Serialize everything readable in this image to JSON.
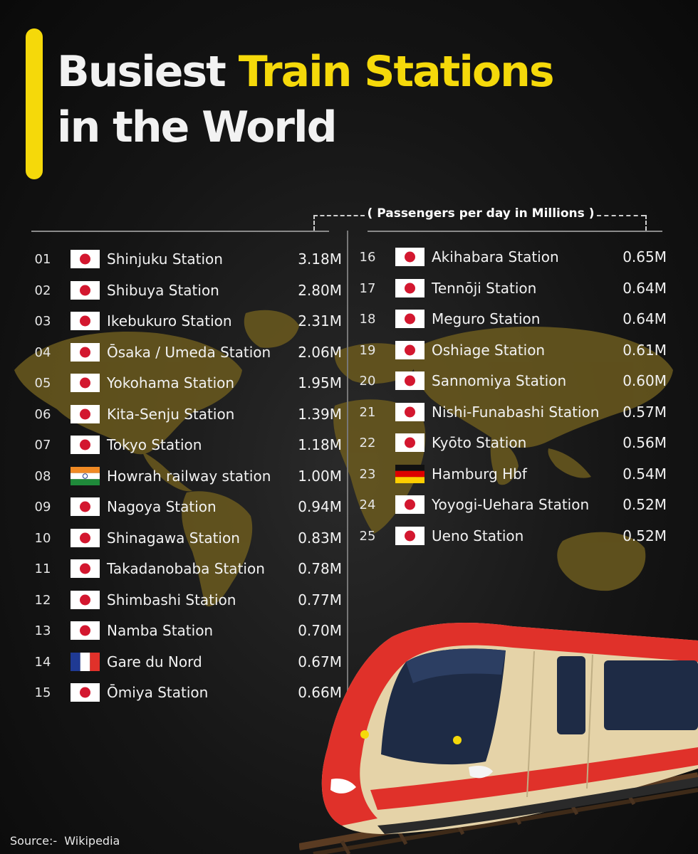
{
  "title": {
    "part1": "Busiest",
    "highlight": "Train Stations",
    "part2": "in the World"
  },
  "subtitle": "( Passengers per day in Millions )",
  "colors": {
    "accent": "#f5d90a",
    "map": "#6b5a1e",
    "train_red": "#e0312a",
    "train_body": "#e5d3a8"
  },
  "stations": [
    {
      "rank": "01",
      "flag": "japan-flag-icon",
      "name": "Shinjuku Station",
      "value": "3.18M"
    },
    {
      "rank": "02",
      "flag": "japan-flag-icon",
      "name": "Shibuya Station",
      "value": "2.80M"
    },
    {
      "rank": "03",
      "flag": "japan-flag-icon",
      "name": "Ikebukuro Station",
      "value": "2.31M"
    },
    {
      "rank": "04",
      "flag": "japan-flag-icon",
      "name": "Ōsaka / Umeda Station",
      "value": "2.06M"
    },
    {
      "rank": "05",
      "flag": "japan-flag-icon",
      "name": "Yokohama Station",
      "value": "1.95M"
    },
    {
      "rank": "06",
      "flag": "japan-flag-icon",
      "name": "Kita-Senju Station",
      "value": "1.39M"
    },
    {
      "rank": "07",
      "flag": "japan-flag-icon",
      "name": "Tokyo Station",
      "value": "1.18M"
    },
    {
      "rank": "08",
      "flag": "india-flag-icon",
      "name": "Howrah railway station",
      "value": "1.00M"
    },
    {
      "rank": "09",
      "flag": "japan-flag-icon",
      "name": "Nagoya Station",
      "value": "0.94M"
    },
    {
      "rank": "10",
      "flag": "japan-flag-icon",
      "name": "Shinagawa Station",
      "value": "0.83M"
    },
    {
      "rank": "11",
      "flag": "japan-flag-icon",
      "name": "Takadanobaba Station",
      "value": "0.78M"
    },
    {
      "rank": "12",
      "flag": "japan-flag-icon",
      "name": "Shimbashi Station",
      "value": "0.77M"
    },
    {
      "rank": "13",
      "flag": "japan-flag-icon",
      "name": "Namba Station",
      "value": "0.70M"
    },
    {
      "rank": "14",
      "flag": "france-flag-icon",
      "name": "Gare du Nord",
      "value": "0.67M"
    },
    {
      "rank": "15",
      "flag": "japan-flag-icon",
      "name": "Ōmiya Station",
      "value": "0.66M"
    },
    {
      "rank": "16",
      "flag": "japan-flag-icon",
      "name": "Akihabara Station",
      "value": "0.65M"
    },
    {
      "rank": "17",
      "flag": "japan-flag-icon",
      "name": "Tennōji Station",
      "value": "0.64M"
    },
    {
      "rank": "18",
      "flag": "japan-flag-icon",
      "name": "Meguro Station",
      "value": "0.64M"
    },
    {
      "rank": "19",
      "flag": "japan-flag-icon",
      "name": "Oshiage Station",
      "value": "0.61M"
    },
    {
      "rank": "20",
      "flag": "japan-flag-icon",
      "name": "Sannomiya Station",
      "value": "0.60M"
    },
    {
      "rank": "21",
      "flag": "japan-flag-icon",
      "name": "Nishi-Funabashi Station",
      "value": "0.57M"
    },
    {
      "rank": "22",
      "flag": "japan-flag-icon",
      "name": "Kyōto Station",
      "value": "0.56M"
    },
    {
      "rank": "23",
      "flag": "germany-flag-icon",
      "name": "Hamburg Hbf",
      "value": "0.54M"
    },
    {
      "rank": "24",
      "flag": "japan-flag-icon",
      "name": "Yoyogi-Uehara Station",
      "value": "0.52M"
    },
    {
      "rank": "25",
      "flag": "japan-flag-icon",
      "name": "Ueno Station",
      "value": "0.52M"
    }
  ],
  "source": {
    "label": "Source:-",
    "name": "Wikipedia"
  }
}
